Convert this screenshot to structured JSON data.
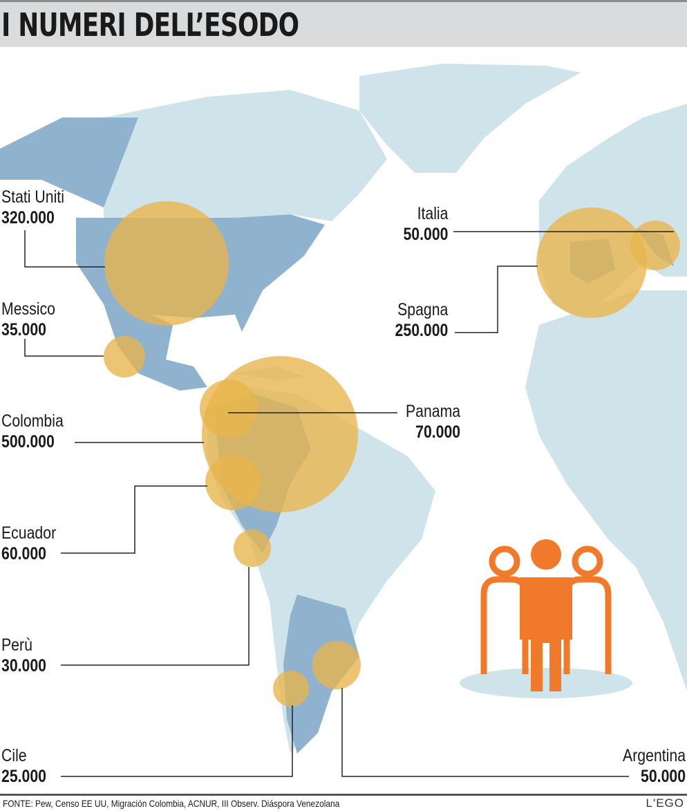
{
  "title": "I NUMERI DELL’ESODO",
  "colors": {
    "land": "#cfe3ea",
    "highlight_land": "#8fb3cf",
    "bubble": "#e8b54a",
    "icon": "#f07a2a",
    "header": "#dadbdc"
  },
  "destinations": [
    {
      "country": "Stati Uniti",
      "value": "320.000"
    },
    {
      "country": "Messico",
      "value": "35.000"
    },
    {
      "country": "Colombia",
      "value": "500.000"
    },
    {
      "country": "Panama",
      "value": "70.000"
    },
    {
      "country": "Ecuador",
      "value": "60.000"
    },
    {
      "country": "Perù",
      "value": "30.000"
    },
    {
      "country": "Cile",
      "value": "25.000"
    },
    {
      "country": "Argentina",
      "value": "50.000"
    },
    {
      "country": "Italia",
      "value": "50.000"
    },
    {
      "country": "Spagna",
      "value": "250.000"
    }
  ],
  "people_icon": "people-group-icon",
  "source": "FONTE: Pew, Censo EE UU, Migración Colombia, ACNUR, III Observ. Diáspora Venezolana",
  "logo": "L'EGO"
}
